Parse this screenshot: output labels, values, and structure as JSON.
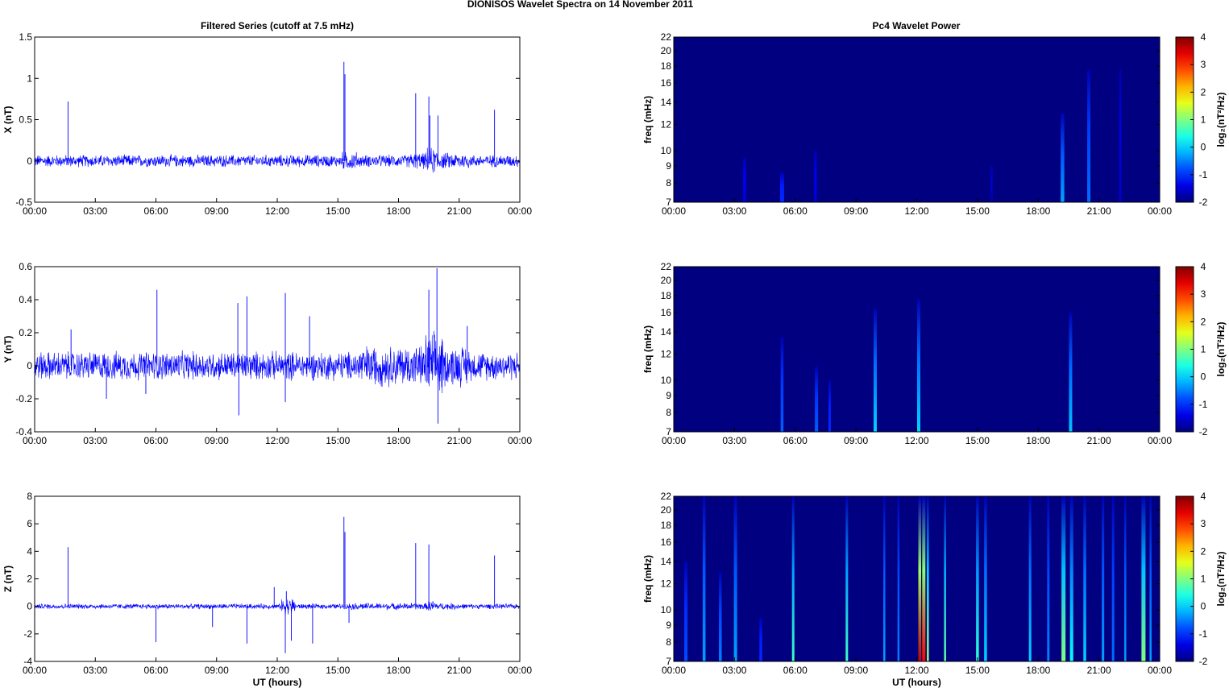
{
  "figure": {
    "title": "DIONISOS Wavelet Spectra on 14 November  2011",
    "left_title": "Filtered Series (cutoff at 7.5 mHz)",
    "right_title": "Pc4 Wavelet Power"
  },
  "chart_data": [
    {
      "type": "line",
      "id": "x-series",
      "title": "Filtered Series (cutoff at 7.5 mHz)",
      "xlabel": "",
      "ylabel": "X (nT)",
      "xlim": [
        0,
        24
      ],
      "xticks": [
        "00:00",
        "03:00",
        "06:00",
        "09:00",
        "12:00",
        "15:00",
        "18:00",
        "21:00",
        "00:00"
      ],
      "ylim": [
        -0.5,
        1.5
      ],
      "yticks": [
        -0.5,
        0,
        0.5,
        1,
        1.5
      ],
      "ytick_labels": [
        "-0.5",
        "0",
        "0.5",
        "1",
        "1.5"
      ],
      "color": "#0000ff",
      "noise": {
        "base": 0.06,
        "bursts": [
          [
            15.2,
            16.0,
            0.09
          ],
          [
            18.5,
            21.5,
            0.08
          ],
          [
            19.4,
            20.0,
            0.13
          ]
        ]
      },
      "spikes": [
        [
          1.65,
          0.72
        ],
        [
          15.3,
          1.2
        ],
        [
          15.35,
          1.05
        ],
        [
          18.85,
          0.82
        ],
        [
          19.5,
          0.78
        ],
        [
          19.55,
          0.55
        ],
        [
          19.95,
          0.55
        ],
        [
          22.75,
          0.62
        ]
      ]
    },
    {
      "type": "line",
      "id": "y-series",
      "xlabel": "",
      "ylabel": "Y (nT)",
      "xlim": [
        0,
        24
      ],
      "xticks": [
        "00:00",
        "03:00",
        "06:00",
        "09:00",
        "12:00",
        "15:00",
        "18:00",
        "21:00",
        "00:00"
      ],
      "ylim": [
        -0.4,
        0.6
      ],
      "yticks": [
        -0.4,
        -0.2,
        0,
        0.2,
        0.4,
        0.6
      ],
      "ytick_labels": [
        "-0.4",
        "-0.2",
        "0",
        "0.2",
        "0.4",
        "0.6"
      ],
      "color": "#0000ff",
      "noise": {
        "base": 0.07,
        "bursts": [
          [
            16.0,
            21.5,
            0.1
          ],
          [
            19.3,
            20.2,
            0.16
          ]
        ]
      },
      "spikes": [
        [
          1.8,
          0.22
        ],
        [
          3.55,
          -0.2
        ],
        [
          5.5,
          -0.17
        ],
        [
          6.05,
          0.46
        ],
        [
          10.05,
          0.38
        ],
        [
          10.1,
          -0.3
        ],
        [
          10.5,
          0.42
        ],
        [
          12.4,
          0.44
        ],
        [
          12.4,
          -0.22
        ],
        [
          13.6,
          0.3
        ],
        [
          19.5,
          0.46
        ],
        [
          19.9,
          0.59
        ],
        [
          19.95,
          -0.35
        ],
        [
          21.4,
          0.24
        ]
      ]
    },
    {
      "type": "line",
      "id": "z-series",
      "xlabel": "UT (hours)",
      "ylabel": "Z (nT)",
      "xlim": [
        0,
        24
      ],
      "xticks": [
        "00:00",
        "03:00",
        "06:00",
        "09:00",
        "12:00",
        "15:00",
        "18:00",
        "21:00",
        "00:00"
      ],
      "ylim": [
        -4,
        8
      ],
      "yticks": [
        -4,
        -2,
        0,
        2,
        4,
        6,
        8
      ],
      "ytick_labels": [
        "-4",
        "-2",
        "0",
        "2",
        "4",
        "6",
        "8"
      ],
      "color": "#0000ff",
      "noise": {
        "base": 0.15,
        "bursts": [
          [
            12.2,
            12.9,
            0.5
          ],
          [
            15.5,
            21.0,
            0.2
          ],
          [
            19.4,
            19.9,
            0.35
          ]
        ]
      },
      "spikes": [
        [
          1.65,
          4.3
        ],
        [
          6.0,
          -2.6
        ],
        [
          8.8,
          -1.5
        ],
        [
          10.5,
          -2.7
        ],
        [
          11.85,
          1.4
        ],
        [
          12.4,
          -3.4
        ],
        [
          12.45,
          1.1
        ],
        [
          12.7,
          -2.5
        ],
        [
          13.75,
          -2.7
        ],
        [
          15.3,
          6.5
        ],
        [
          15.35,
          5.4
        ],
        [
          15.55,
          -1.2
        ],
        [
          18.85,
          4.6
        ],
        [
          19.5,
          4.5
        ],
        [
          22.75,
          3.7
        ]
      ]
    },
    {
      "type": "heatmap",
      "id": "x-power",
      "title": "Pc4 Wavelet Power",
      "xlabel": "",
      "ylabel": "freq (mHz)",
      "xlim": [
        0,
        24
      ],
      "xticks": [
        "00:00",
        "03:00",
        "06:00",
        "09:00",
        "12:00",
        "15:00",
        "18:00",
        "21:00",
        "00:00"
      ],
      "ylim": [
        7,
        22
      ],
      "log_y": true,
      "yticks": [
        7,
        8,
        9,
        10,
        12,
        14,
        16,
        18,
        20,
        22
      ],
      "ytick_labels": [
        "7",
        "8",
        "9",
        "10",
        "12",
        "14",
        "16",
        "18",
        "20",
        "22"
      ],
      "clim": [
        -2,
        4
      ],
      "colorbar_label": "log₂(nT²/Hz)",
      "colorbar_ticks": [
        "-2",
        "-1",
        "0",
        "1",
        "2",
        "3",
        "4"
      ],
      "background": -2,
      "streaks": [
        [
          3.5,
          0.08,
          -1.5,
          9.5
        ],
        [
          5.35,
          0.1,
          -1.0,
          8.6
        ],
        [
          7.0,
          0.07,
          -1.5,
          10.0
        ],
        [
          15.7,
          0.05,
          -1.7,
          9.0
        ],
        [
          19.2,
          0.09,
          -0.3,
          13.0
        ],
        [
          20.5,
          0.08,
          -0.6,
          17.5
        ],
        [
          22.05,
          0.05,
          -1.5,
          17.5
        ]
      ]
    },
    {
      "type": "heatmap",
      "id": "y-power",
      "xlabel": "",
      "ylabel": "freq (mHz)",
      "xlim": [
        0,
        24
      ],
      "xticks": [
        "00:00",
        "03:00",
        "06:00",
        "09:00",
        "12:00",
        "15:00",
        "18:00",
        "21:00",
        "00:00"
      ],
      "ylim": [
        7,
        22
      ],
      "log_y": true,
      "yticks": [
        7,
        8,
        9,
        10,
        12,
        14,
        16,
        18,
        20,
        22
      ],
      "ytick_labels": [
        "7",
        "8",
        "9",
        "10",
        "12",
        "14",
        "16",
        "18",
        "20",
        "22"
      ],
      "clim": [
        -2,
        4
      ],
      "colorbar_label": "log₂(nT²/Hz)",
      "colorbar_ticks": [
        "-2",
        "-1",
        "0",
        "1",
        "2",
        "3",
        "4"
      ],
      "background": -2,
      "streaks": [
        [
          5.35,
          0.07,
          -0.7,
          13.5
        ],
        [
          7.05,
          0.08,
          -0.7,
          11.0
        ],
        [
          7.7,
          0.06,
          -1.0,
          10.0
        ],
        [
          9.95,
          0.08,
          0.0,
          16.5
        ],
        [
          12.1,
          0.08,
          0.0,
          17.5
        ],
        [
          19.6,
          0.08,
          -0.1,
          16.0
        ]
      ]
    },
    {
      "type": "heatmap",
      "id": "z-power",
      "xlabel": "UT (hours)",
      "ylabel": "freq (mHz)",
      "xlim": [
        0,
        24
      ],
      "xticks": [
        "00:00",
        "03:00",
        "06:00",
        "09:00",
        "12:00",
        "15:00",
        "18:00",
        "21:00",
        "00:00"
      ],
      "ylim": [
        7,
        22
      ],
      "log_y": true,
      "yticks": [
        7,
        8,
        9,
        10,
        12,
        14,
        16,
        18,
        20,
        22
      ],
      "ytick_labels": [
        "7",
        "8",
        "9",
        "10",
        "12",
        "14",
        "16",
        "18",
        "20",
        "22"
      ],
      "clim": [
        -2,
        4
      ],
      "colorbar_label": "log₂(nT²/Hz)",
      "colorbar_ticks": [
        "-2",
        "-1",
        "0",
        "1",
        "2",
        "3",
        "4"
      ],
      "background": -2,
      "streaks": [
        [
          0.6,
          0.08,
          -0.8,
          14.0
        ],
        [
          1.5,
          0.07,
          -0.3,
          22.0
        ],
        [
          2.3,
          0.07,
          -0.5,
          13.0
        ],
        [
          3.05,
          0.08,
          -0.3,
          22.0
        ],
        [
          4.3,
          0.07,
          -1.0,
          9.5
        ],
        [
          5.9,
          0.06,
          0.6,
          22.0
        ],
        [
          8.55,
          0.06,
          0.6,
          22.0
        ],
        [
          10.4,
          0.05,
          -0.3,
          22.0
        ],
        [
          11.1,
          0.05,
          -0.5,
          22.0
        ],
        [
          12.15,
          0.07,
          3.6,
          22.0
        ],
        [
          12.35,
          0.08,
          3.3,
          22.0
        ],
        [
          12.55,
          0.05,
          1.2,
          22.0
        ],
        [
          13.4,
          0.05,
          0.8,
          22.0
        ],
        [
          15.0,
          0.07,
          0.5,
          22.0
        ],
        [
          15.4,
          0.07,
          0.0,
          22.0
        ],
        [
          17.6,
          0.06,
          0.0,
          22.0
        ],
        [
          18.5,
          0.06,
          -0.5,
          22.0
        ],
        [
          19.25,
          0.1,
          1.0,
          22.0
        ],
        [
          19.65,
          0.08,
          0.3,
          22.0
        ],
        [
          20.3,
          0.07,
          0.0,
          22.0
        ],
        [
          21.2,
          0.06,
          -0.3,
          22.0
        ],
        [
          21.7,
          0.06,
          -0.6,
          22.0
        ],
        [
          22.3,
          0.05,
          -0.3,
          22.0
        ],
        [
          23.2,
          0.1,
          1.0,
          22.0
        ],
        [
          23.55,
          0.05,
          -0.3,
          22.0
        ]
      ]
    }
  ]
}
